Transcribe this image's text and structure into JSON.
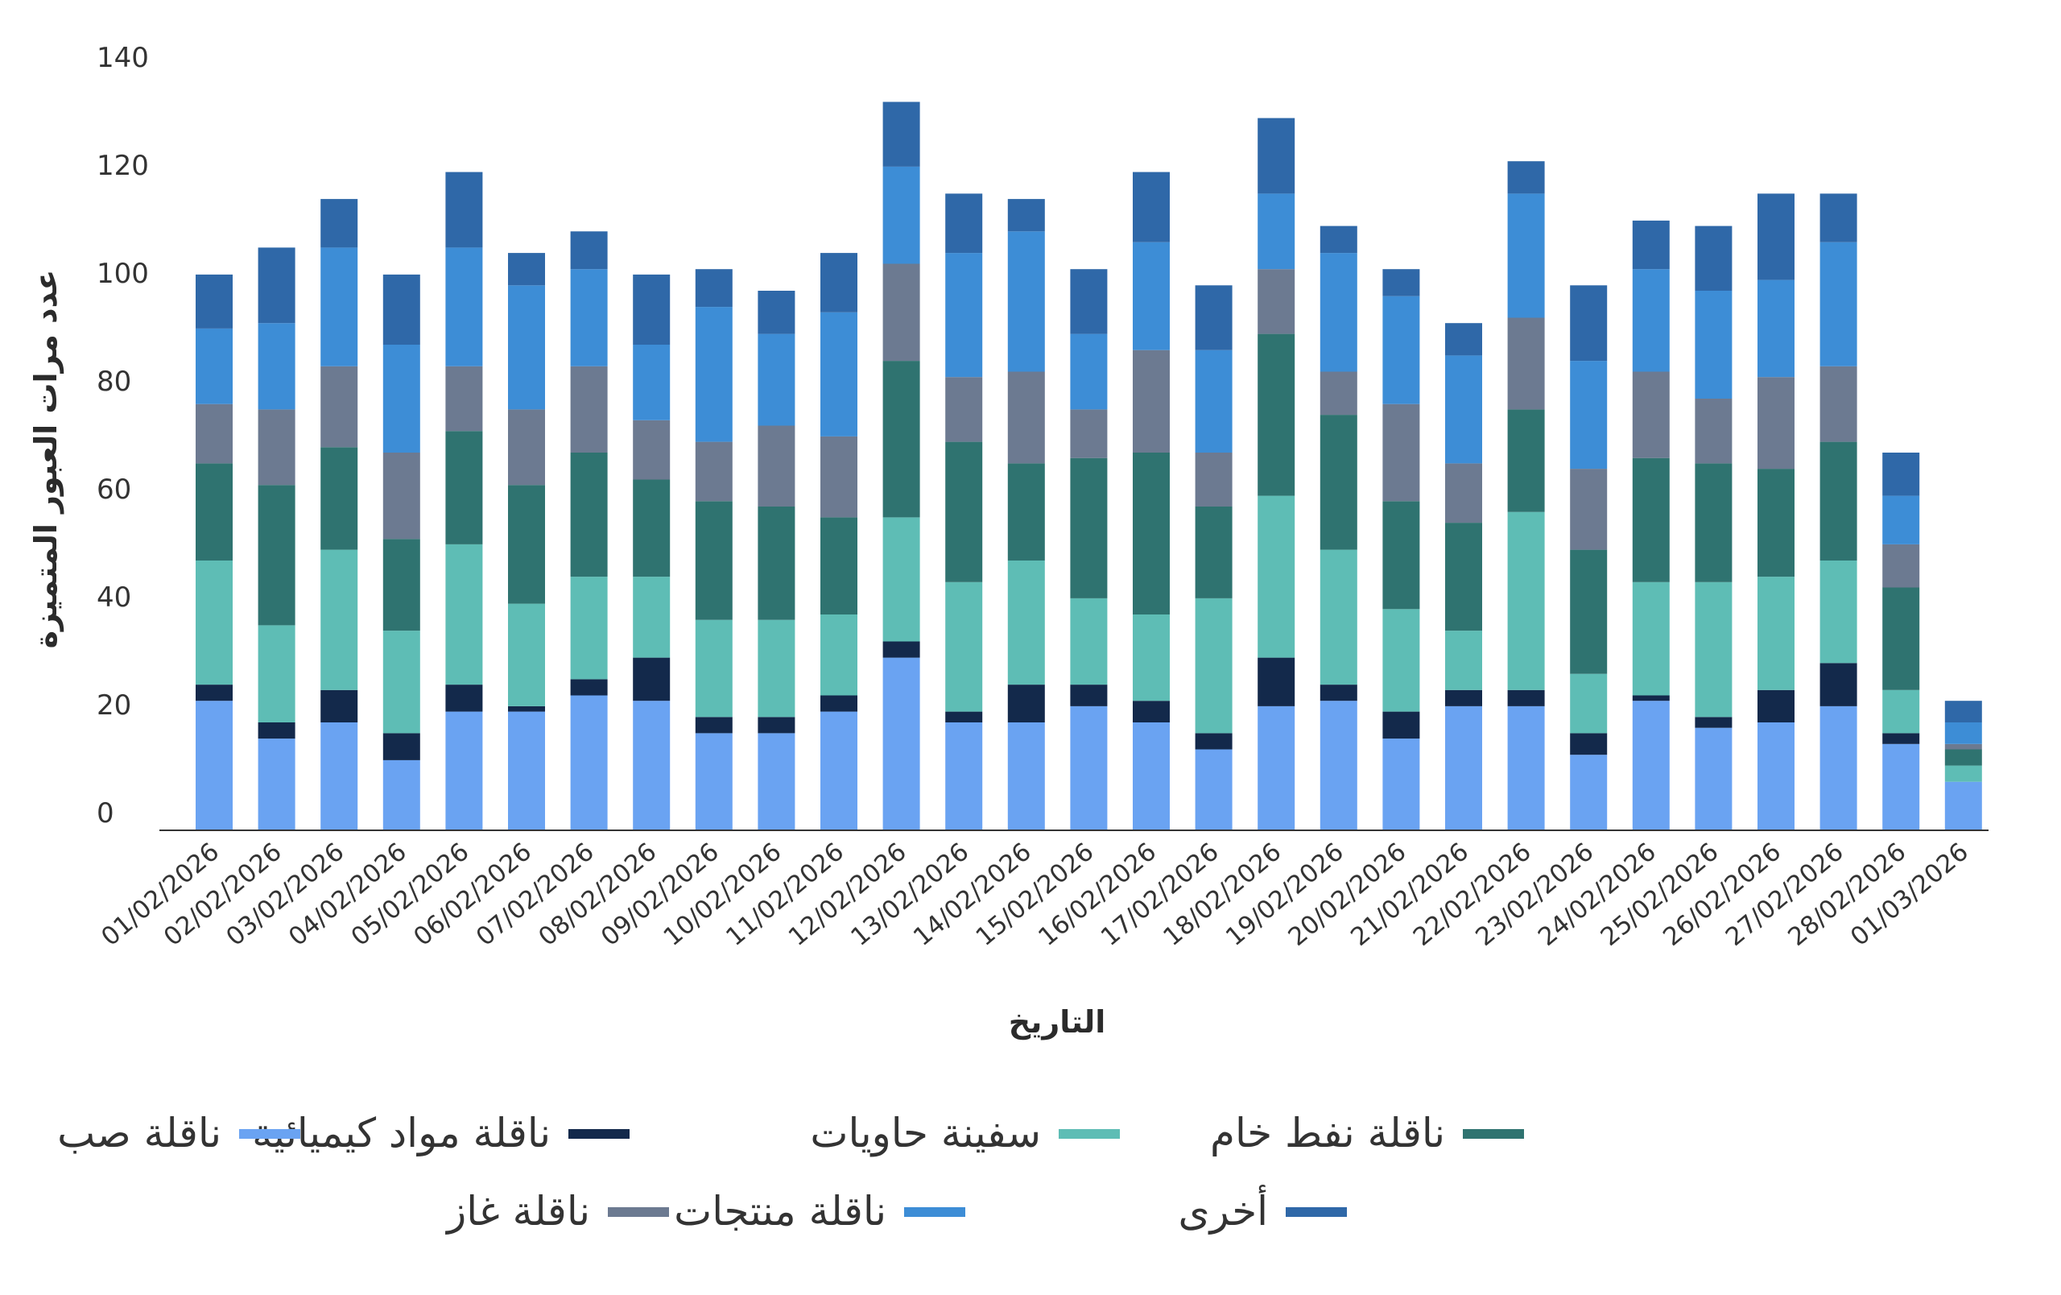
{
  "chart_data": {
    "type": "bar",
    "stacked": true,
    "title": "",
    "xlabel": "التاريخ",
    "ylabel": "عدد مرات العبور المتميزة",
    "ylim": [
      0,
      140
    ],
    "yticks": [
      0,
      20,
      40,
      60,
      80,
      100,
      120,
      140
    ],
    "grid": false,
    "legend_position": "bottom",
    "categories": [
      "01/02/2026",
      "02/02/2026",
      "03/02/2026",
      "04/02/2026",
      "05/02/2026",
      "06/02/2026",
      "07/02/2026",
      "08/02/2026",
      "09/02/2026",
      "10/02/2026",
      "11/02/2026",
      "12/02/2026",
      "13/02/2026",
      "14/02/2026",
      "15/02/2026",
      "16/02/2026",
      "17/02/2026",
      "18/02/2026",
      "19/02/2026",
      "20/02/2026",
      "21/02/2026",
      "22/02/2026",
      "23/02/2026",
      "24/02/2026",
      "25/02/2026",
      "26/02/2026",
      "27/02/2026",
      "28/02/2026",
      "01/03/2026"
    ],
    "series": [
      {
        "name": "ناقلة صب",
        "color": "#6aa3f2",
        "values": [
          24,
          17,
          20,
          13,
          22,
          22,
          25,
          24,
          18,
          18,
          22,
          32,
          20,
          20,
          23,
          20,
          15,
          23,
          24,
          17,
          23,
          23,
          14,
          24,
          19,
          20,
          23,
          16,
          9
        ]
      },
      {
        "name": "ناقلة مواد كيميائية",
        "color": "#13294b",
        "values": [
          3,
          3,
          6,
          5,
          5,
          1,
          3,
          8,
          3,
          3,
          3,
          3,
          2,
          7,
          4,
          4,
          3,
          9,
          3,
          5,
          3,
          3,
          4,
          1,
          2,
          6,
          8,
          2,
          0
        ]
      },
      {
        "name": "سفينة حاويات",
        "color": "#5ebdb5",
        "values": [
          23,
          18,
          26,
          19,
          26,
          19,
          19,
          15,
          18,
          18,
          15,
          23,
          24,
          23,
          16,
          16,
          25,
          30,
          25,
          19,
          11,
          33,
          11,
          21,
          25,
          21,
          19,
          8,
          3
        ]
      },
      {
        "name": "ناقلة نفط خام",
        "color": "#2f7370",
        "values": [
          18,
          26,
          19,
          17,
          21,
          22,
          23,
          18,
          22,
          21,
          18,
          29,
          26,
          18,
          26,
          30,
          17,
          30,
          25,
          20,
          20,
          19,
          23,
          23,
          22,
          20,
          22,
          19,
          3
        ]
      },
      {
        "name": "ناقلة غاز",
        "color": "#6c7a91",
        "values": [
          11,
          14,
          15,
          16,
          12,
          14,
          16,
          11,
          11,
          15,
          15,
          18,
          12,
          17,
          9,
          19,
          10,
          12,
          8,
          18,
          11,
          17,
          15,
          16,
          12,
          17,
          14,
          8,
          1
        ]
      },
      {
        "name": "ناقلة منتجات",
        "color": "#3d8dd6",
        "values": [
          14,
          16,
          22,
          20,
          22,
          23,
          18,
          14,
          25,
          17,
          23,
          18,
          23,
          26,
          14,
          20,
          19,
          14,
          22,
          20,
          20,
          23,
          20,
          19,
          20,
          18,
          23,
          9,
          4
        ]
      },
      {
        "name": "أخرى",
        "color": "#2f68a8",
        "values": [
          10,
          14,
          9,
          13,
          14,
          6,
          7,
          13,
          7,
          8,
          11,
          12,
          11,
          6,
          12,
          13,
          12,
          14,
          5,
          5,
          6,
          6,
          14,
          9,
          12,
          16,
          9,
          8,
          4
        ]
      }
    ],
    "legend_rows": [
      [
        "ناقلة نفط خام",
        "سفينة حاويات",
        "ناقلة مواد كيميائية",
        "ناقلة صب"
      ],
      [
        "أخرى",
        "ناقلة منتجات",
        "ناقلة غاز"
      ]
    ]
  }
}
